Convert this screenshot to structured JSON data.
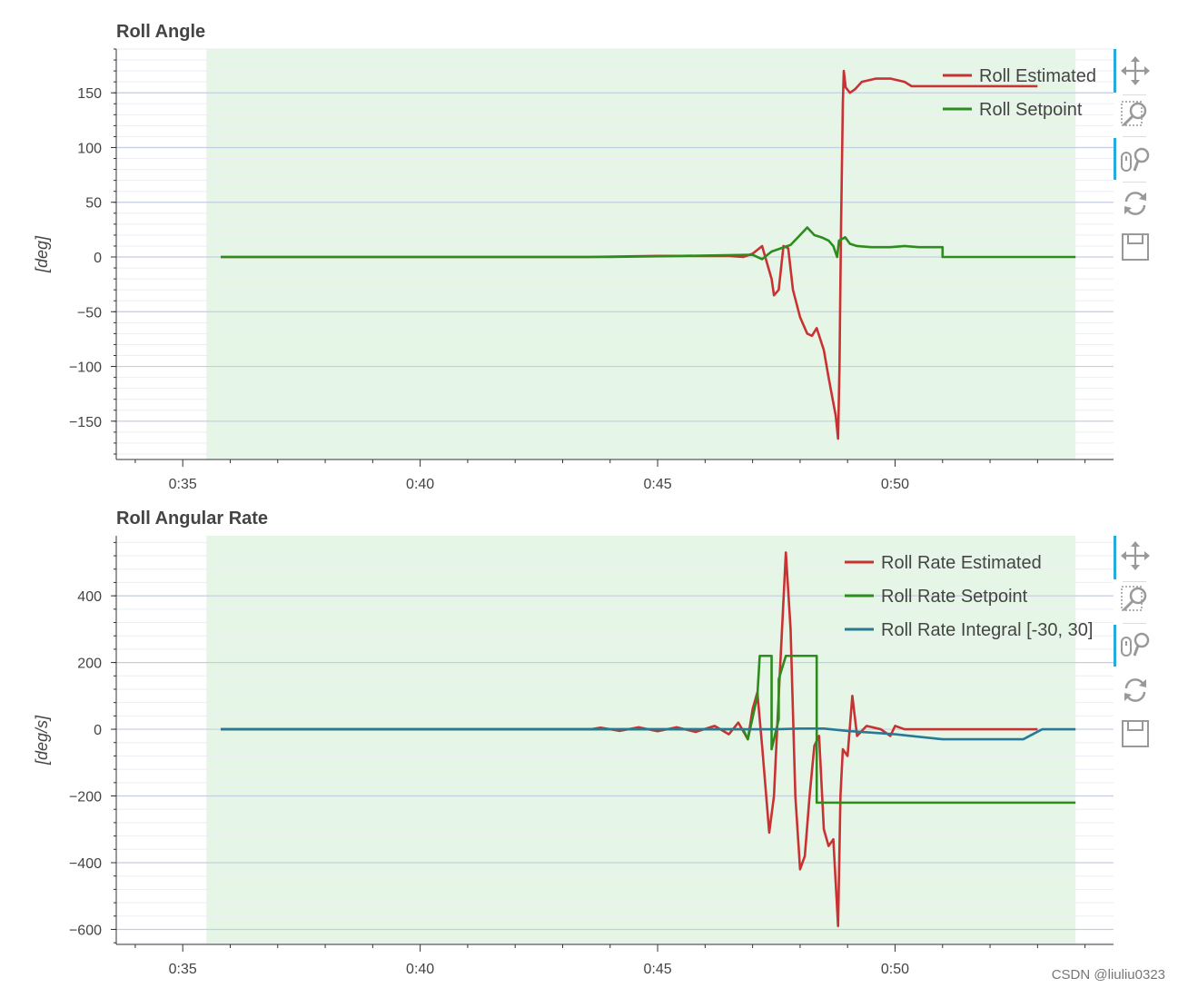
{
  "watermark": "CSDN @liuliu0323",
  "colors": {
    "background_band": "#e6f6e6",
    "grid_major": "#c6cde1",
    "grid_minor": "#eceef4",
    "axis": "#333333",
    "roll_estimated": "#c83232",
    "roll_setpoint": "#2c8c1e",
    "roll_integral": "#287896",
    "toolbar_accent": "#26aae1",
    "toolbar_icon": "#999999"
  },
  "toolbar": {
    "tools": [
      {
        "name": "pan",
        "icon": "move-icon",
        "active": true
      },
      {
        "name": "box-zoom",
        "icon": "box-zoom-icon",
        "active": false
      },
      {
        "name": "wheel-zoom",
        "icon": "wheel-zoom-icon",
        "active": true
      },
      {
        "name": "reset",
        "icon": "reset-icon",
        "active": false
      },
      {
        "name": "save",
        "icon": "save-icon",
        "active": false
      }
    ]
  },
  "chart_data": [
    {
      "type": "line",
      "title": "Roll Angle",
      "ylabel": "[deg]",
      "xlabel": "",
      "xlim": [
        "0:33.6",
        "0:54.6"
      ],
      "ylim": [
        -185,
        190
      ],
      "x_ticks": [
        "0:35",
        "0:40",
        "0:45",
        "0:50"
      ],
      "y_ticks": [
        150,
        100,
        50,
        0,
        -50,
        -100,
        -150
      ],
      "shaded_range": [
        "0:35.5",
        "0:53.8"
      ],
      "legend": "top-right",
      "grid": true,
      "series": [
        {
          "name": "Roll Estimated",
          "color_key": "roll_estimated",
          "points": [
            [
              "0:35.8",
              0
            ],
            [
              "0:43.5",
              0
            ],
            [
              "0:45.0",
              1
            ],
            [
              "0:46.5",
              1
            ],
            [
              "0:46.8",
              0
            ],
            [
              "0:47.0",
              3
            ],
            [
              "0:47.2",
              10
            ],
            [
              "0:47.4",
              -20
            ],
            [
              "0:47.45",
              -35
            ],
            [
              "0:47.55",
              -30
            ],
            [
              "0:47.65",
              10
            ],
            [
              "0:47.75",
              8
            ],
            [
              "0:47.85",
              -30
            ],
            [
              "0:48.0",
              -55
            ],
            [
              "0:48.15",
              -70
            ],
            [
              "0:48.25",
              -72
            ],
            [
              "0:48.35",
              -65
            ],
            [
              "0:48.5",
              -85
            ],
            [
              "0:48.6",
              -110
            ],
            [
              "0:48.75",
              -145
            ],
            [
              "0:48.8",
              -166
            ],
            [
              "0:48.83",
              -100
            ],
            [
              "0:48.86",
              20
            ],
            [
              "0:48.9",
              140
            ],
            [
              "0:48.92",
              170
            ],
            [
              "0:48.96",
              155
            ],
            [
              "0:49.05",
              150
            ],
            [
              "0:49.15",
              153
            ],
            [
              "0:49.3",
              160
            ],
            [
              "0:49.6",
              163
            ],
            [
              "0:49.9",
              163
            ],
            [
              "0:50.2",
              160
            ],
            [
              "0:50.35",
              156
            ],
            [
              "0:50.5",
              156
            ],
            [
              "0:51.5",
              156
            ],
            [
              "0:52.5",
              156
            ],
            [
              "0:53.0",
              156
            ]
          ]
        },
        {
          "name": "Roll Setpoint",
          "color_key": "roll_setpoint",
          "points": [
            [
              "0:35.8",
              0
            ],
            [
              "0:44.0",
              0
            ],
            [
              "0:45.5",
              1
            ],
            [
              "0:47.0",
              2
            ],
            [
              "0:47.2",
              -2
            ],
            [
              "0:47.4",
              5
            ],
            [
              "0:47.6",
              8
            ],
            [
              "0:47.8",
              11
            ],
            [
              "0:48.0",
              20
            ],
            [
              "0:48.15",
              27
            ],
            [
              "0:48.3",
              20
            ],
            [
              "0:48.45",
              18
            ],
            [
              "0:48.6",
              15
            ],
            [
              "0:48.7",
              10
            ],
            [
              "0:48.78",
              0
            ],
            [
              "0:48.82",
              15
            ],
            [
              "0:48.95",
              18
            ],
            [
              "0:49.05",
              12
            ],
            [
              "0:49.2",
              10
            ],
            [
              "0:49.5",
              9
            ],
            [
              "0:49.9",
              9
            ],
            [
              "0:50.2",
              10
            ],
            [
              "0:50.5",
              9
            ],
            [
              "0:51.0",
              9
            ],
            [
              "0:51.0",
              0
            ],
            [
              "0:53.8",
              0
            ]
          ]
        }
      ]
    },
    {
      "type": "line",
      "title": "Roll Angular Rate",
      "ylabel": "[deg/s]",
      "xlabel": "",
      "xlim": [
        "0:33.6",
        "0:54.6"
      ],
      "ylim": [
        -645,
        580
      ],
      "x_ticks": [
        "0:35",
        "0:40",
        "0:45",
        "0:50"
      ],
      "y_ticks": [
        400,
        200,
        0,
        -200,
        -400,
        -600
      ],
      "shaded_range": [
        "0:35.5",
        "0:53.8"
      ],
      "legend": "top-right",
      "grid": true,
      "series": [
        {
          "name": "Roll Rate Estimated",
          "color_key": "roll_estimated",
          "points": [
            [
              "0:35.8",
              0
            ],
            [
              "0:43.6",
              0
            ],
            [
              "0:43.8",
              5
            ],
            [
              "0:44.2",
              -5
            ],
            [
              "0:44.6",
              6
            ],
            [
              "0:45.0",
              -6
            ],
            [
              "0:45.4",
              6
            ],
            [
              "0:45.8",
              -8
            ],
            [
              "0:46.2",
              10
            ],
            [
              "0:46.5",
              -15
            ],
            [
              "0:46.7",
              20
            ],
            [
              "0:46.9",
              -30
            ],
            [
              "0:47.0",
              60
            ],
            [
              "0:47.1",
              110
            ],
            [
              "0:47.2",
              -50
            ],
            [
              "0:47.35",
              -310
            ],
            [
              "0:47.45",
              -200
            ],
            [
              "0:47.55",
              100
            ],
            [
              "0:47.7",
              530
            ],
            [
              "0:47.8",
              300
            ],
            [
              "0:47.9",
              -200
            ],
            [
              "0:48.0",
              -420
            ],
            [
              "0:48.1",
              -380
            ],
            [
              "0:48.2",
              -200
            ],
            [
              "0:48.3",
              -50
            ],
            [
              "0:48.4",
              -20
            ],
            [
              "0:48.5",
              -300
            ],
            [
              "0:48.6",
              -350
            ],
            [
              "0:48.7",
              -330
            ],
            [
              "0:48.8",
              -590
            ],
            [
              "0:48.85",
              -200
            ],
            [
              "0:48.9",
              -60
            ],
            [
              "0:49.0",
              -80
            ],
            [
              "0:49.1",
              100
            ],
            [
              "0:49.2",
              -20
            ],
            [
              "0:49.4",
              10
            ],
            [
              "0:49.7",
              0
            ],
            [
              "0:49.9",
              -20
            ],
            [
              "0:50.0",
              10
            ],
            [
              "0:50.2",
              0
            ],
            [
              "0:50.6",
              0
            ],
            [
              "0:53.0",
              0
            ]
          ]
        },
        {
          "name": "Roll Rate Setpoint",
          "color_key": "roll_setpoint",
          "points": [
            [
              "0:35.8",
              0
            ],
            [
              "0:46.8",
              0
            ],
            [
              "0:46.9",
              -30
            ],
            [
              "0:47.1",
              100
            ],
            [
              "0:47.15",
              220
            ],
            [
              "0:47.4",
              220
            ],
            [
              "0:47.4",
              -60
            ],
            [
              "0:47.55",
              30
            ],
            [
              "0:47.55",
              150
            ],
            [
              "0:47.7",
              220
            ],
            [
              "0:48.35",
              220
            ],
            [
              "0:48.35",
              -220
            ],
            [
              "0:53.8",
              -220
            ]
          ]
        },
        {
          "name": "Roll Rate Integral [-30, 30]",
          "color_key": "roll_integral",
          "points": [
            [
              "0:35.8",
              0
            ],
            [
              "0:47.5",
              0
            ],
            [
              "0:48.0",
              2
            ],
            [
              "0:48.5",
              2
            ],
            [
              "0:49.0",
              -5
            ],
            [
              "0:50.0",
              -15
            ],
            [
              "0:51.0",
              -30
            ],
            [
              "0:52.7",
              -30
            ],
            [
              "0:52.9",
              -15
            ],
            [
              "0:53.1",
              0
            ],
            [
              "0:53.8",
              0
            ]
          ]
        }
      ]
    }
  ]
}
